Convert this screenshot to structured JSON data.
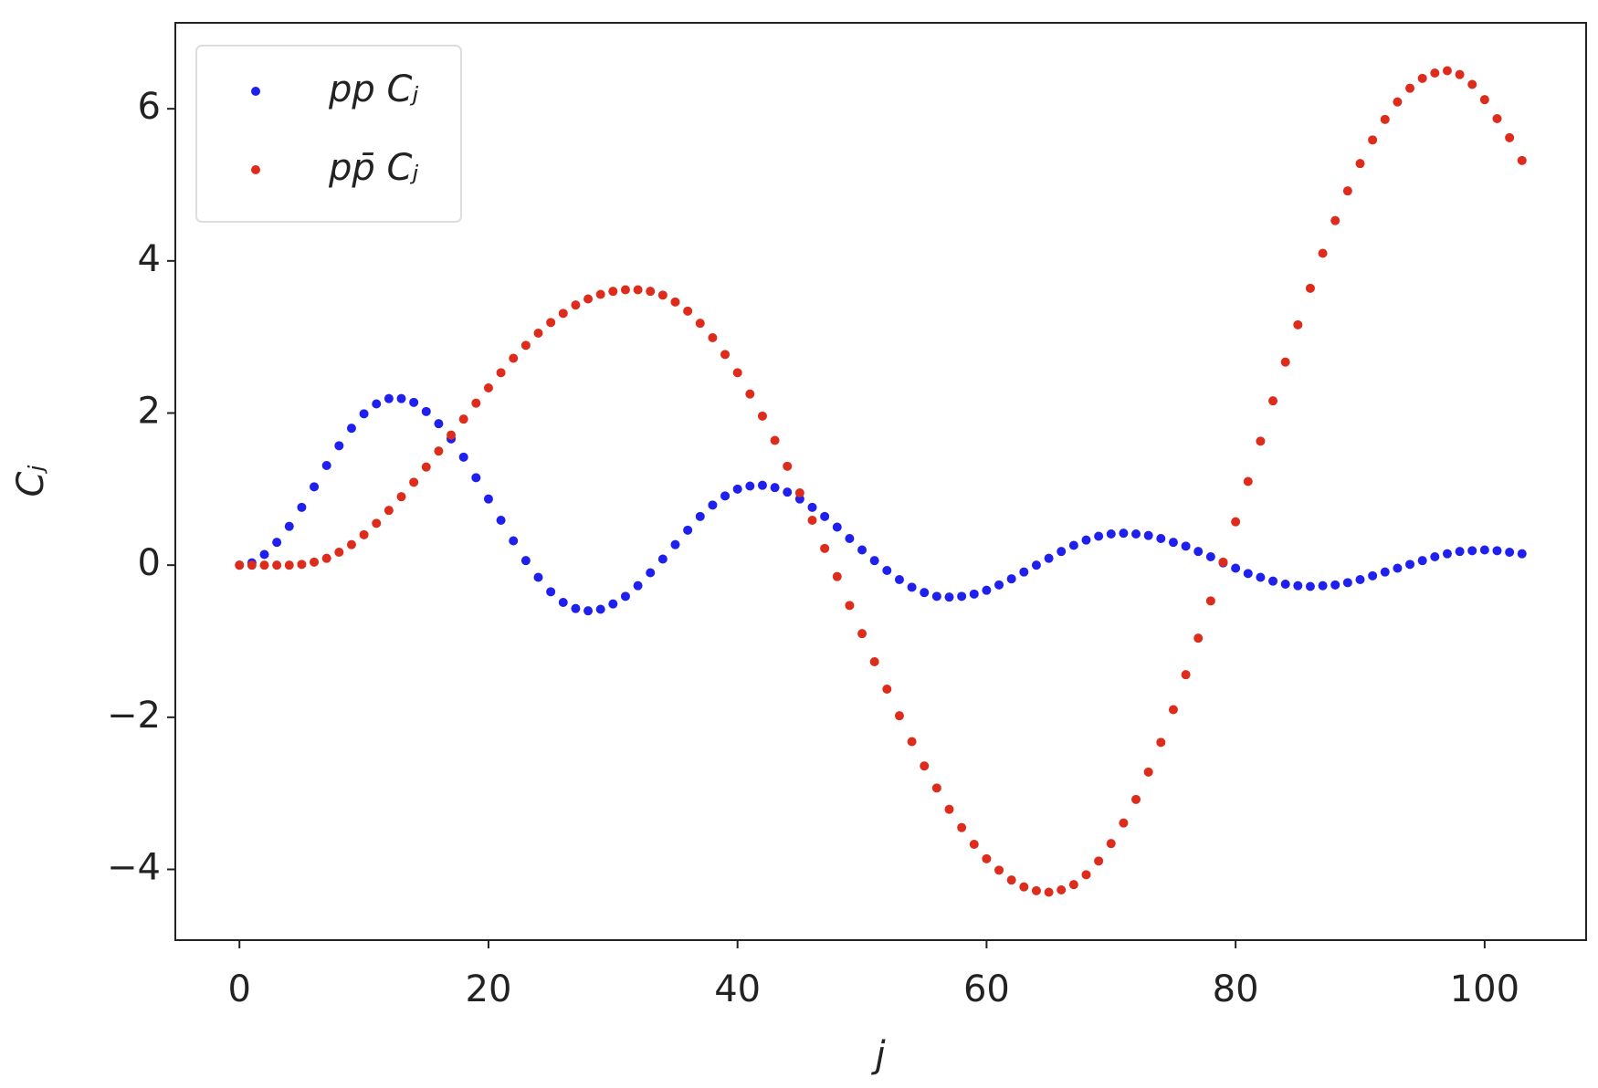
{
  "chart_data": {
    "type": "scatter",
    "xlabel": "j",
    "ylabel": "Cⱼ",
    "x": [
      0,
      1,
      2,
      3,
      4,
      5,
      6,
      7,
      8,
      9,
      10,
      11,
      12,
      13,
      14,
      15,
      16,
      17,
      18,
      19,
      20,
      21,
      22,
      23,
      24,
      25,
      26,
      27,
      28,
      29,
      30,
      31,
      32,
      33,
      34,
      35,
      36,
      37,
      38,
      39,
      40,
      41,
      42,
      43,
      44,
      45,
      46,
      47,
      48,
      49,
      50,
      51,
      52,
      53,
      54,
      55,
      56,
      57,
      58,
      59,
      60,
      61,
      62,
      63,
      64,
      65,
      66,
      67,
      68,
      69,
      70,
      71,
      72,
      73,
      74,
      75,
      76,
      77,
      78,
      79,
      80,
      81,
      82,
      83,
      84,
      85,
      86,
      87,
      88,
      89,
      90,
      91,
      92,
      93,
      94,
      95,
      96,
      97,
      98,
      99,
      100,
      101,
      102,
      103
    ],
    "series": [
      {
        "name": "pp Cⱼ",
        "color": "#2020ee",
        "values": [
          0,
          0.03,
          0.14,
          0.3,
          0.51,
          0.76,
          1.03,
          1.31,
          1.57,
          1.8,
          1.99,
          2.12,
          2.19,
          2.19,
          2.14,
          2.02,
          1.86,
          1.66,
          1.42,
          1.15,
          0.87,
          0.59,
          0.32,
          0.06,
          -0.16,
          -0.35,
          -0.49,
          -0.57,
          -0.6,
          -0.58,
          -0.51,
          -0.41,
          -0.27,
          -0.1,
          0.08,
          0.27,
          0.46,
          0.64,
          0.79,
          0.91,
          1.0,
          1.04,
          1.05,
          1.02,
          0.96,
          0.87,
          0.76,
          0.64,
          0.5,
          0.35,
          0.2,
          0.06,
          -0.07,
          -0.19,
          -0.29,
          -0.36,
          -0.41,
          -0.42,
          -0.41,
          -0.38,
          -0.33,
          -0.26,
          -0.18,
          -0.09,
          0.0,
          0.09,
          0.18,
          0.26,
          0.33,
          0.38,
          0.41,
          0.42,
          0.41,
          0.39,
          0.35,
          0.3,
          0.25,
          0.18,
          0.11,
          0.03,
          -0.04,
          -0.11,
          -0.16,
          -0.21,
          -0.25,
          -0.27,
          -0.28,
          -0.27,
          -0.26,
          -0.23,
          -0.19,
          -0.14,
          -0.09,
          -0.04,
          0.01,
          0.06,
          0.11,
          0.15,
          0.18,
          0.19,
          0.2,
          0.19,
          0.17,
          0.15
        ]
      },
      {
        "name": "pp̄ Cⱼ",
        "color": "#dd2c1c",
        "values": [
          0,
          0,
          0,
          0,
          0,
          0.01,
          0.04,
          0.09,
          0.17,
          0.27,
          0.4,
          0.55,
          0.72,
          0.9,
          1.09,
          1.29,
          1.5,
          1.71,
          1.92,
          2.13,
          2.33,
          2.53,
          2.72,
          2.89,
          3.05,
          3.19,
          3.31,
          3.42,
          3.5,
          3.56,
          3.6,
          3.62,
          3.62,
          3.6,
          3.55,
          3.46,
          3.34,
          3.18,
          2.99,
          2.77,
          2.53,
          2.25,
          1.96,
          1.64,
          1.3,
          0.95,
          0.59,
          0.22,
          -0.15,
          -0.53,
          -0.9,
          -1.27,
          -1.63,
          -1.98,
          -2.32,
          -2.64,
          -2.93,
          -3.21,
          -3.45,
          -3.67,
          -3.86,
          -4.01,
          -4.14,
          -4.23,
          -4.28,
          -4.3,
          -4.27,
          -4.2,
          -4.07,
          -3.89,
          -3.66,
          -3.39,
          -3.08,
          -2.72,
          -2.33,
          -1.9,
          -1.44,
          -0.96,
          -0.47,
          0.04,
          0.57,
          1.1,
          1.63,
          2.16,
          2.67,
          3.16,
          3.64,
          4.1,
          4.53,
          4.92,
          5.28,
          5.59,
          5.86,
          6.09,
          6.27,
          6.4,
          6.47,
          6.5,
          6.45,
          6.32,
          6.12,
          5.87,
          5.62,
          5.32
        ]
      }
    ],
    "xlim": [
      -5.15,
      108.15
    ],
    "ylim": [
      -4.93,
      7.13
    ],
    "xticks": [
      0,
      20,
      40,
      60,
      80,
      100
    ],
    "yticks": [
      {
        "value": -4,
        "label": "−4"
      },
      {
        "value": -2,
        "label": "−2"
      },
      0,
      2,
      4,
      6
    ],
    "grid": false,
    "legend": "upper left"
  }
}
